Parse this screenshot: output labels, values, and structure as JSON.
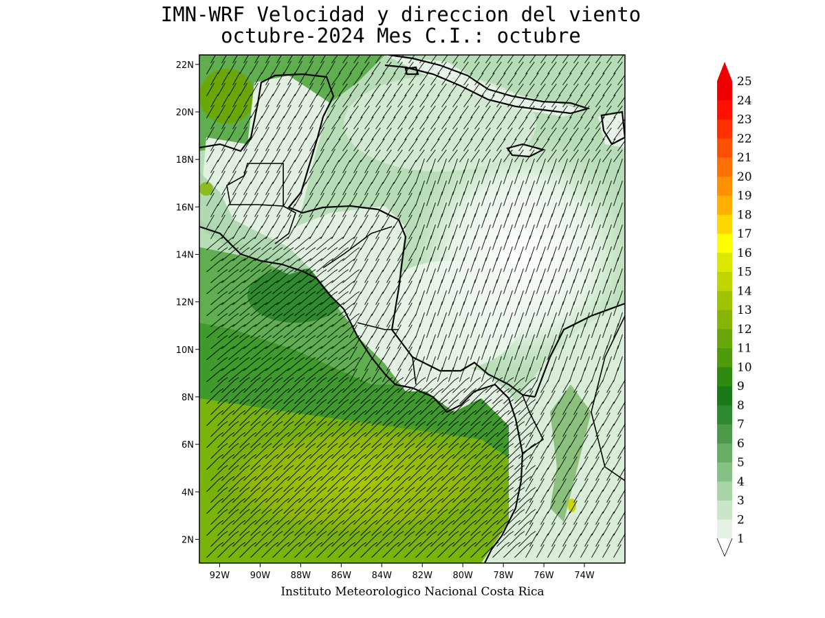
{
  "title": {
    "line1": "IMN-WRF Velocidad y direccion del viento",
    "line2": "octubre-2024 Mes C.I.: octubre"
  },
  "credit": "Instituto Meteorologico Nacional Costa Rica",
  "map": {
    "lon_range": [
      -93.0,
      -72.0
    ],
    "lat_range": [
      1.0,
      22.4
    ],
    "lat_ticks": [
      {
        "value": 2,
        "label": "2N"
      },
      {
        "value": 4,
        "label": "4N"
      },
      {
        "value": 6,
        "label": "6N"
      },
      {
        "value": 8,
        "label": "8N"
      },
      {
        "value": 10,
        "label": "10N"
      },
      {
        "value": 12,
        "label": "12N"
      },
      {
        "value": 14,
        "label": "14N"
      },
      {
        "value": 16,
        "label": "16N"
      },
      {
        "value": 18,
        "label": "18N"
      },
      {
        "value": 20,
        "label": "20N"
      },
      {
        "value": 22,
        "label": "22N"
      }
    ],
    "lon_ticks": [
      {
        "value": -92,
        "label": "92W"
      },
      {
        "value": -90,
        "label": "90W"
      },
      {
        "value": -88,
        "label": "88W"
      },
      {
        "value": -86,
        "label": "86W"
      },
      {
        "value": -84,
        "label": "84W"
      },
      {
        "value": -82,
        "label": "82W"
      },
      {
        "value": -80,
        "label": "80W"
      },
      {
        "value": -78,
        "label": "78W"
      },
      {
        "value": -76,
        "label": "76W"
      },
      {
        "value": -74,
        "label": "74W"
      }
    ],
    "field": "wind speed with wind barbs"
  },
  "colorbar": {
    "levels": [
      "1",
      "2",
      "3",
      "4",
      "5",
      "6",
      "7",
      "8",
      "9",
      "10",
      "11",
      "12",
      "13",
      "14",
      "15",
      "16",
      "17",
      "18",
      "19",
      "20",
      "21",
      "22",
      "23",
      "24",
      "25"
    ],
    "colors": [
      "#ffffff",
      "#e5f2e5",
      "#c9e6c9",
      "#a6d4a6",
      "#85c185",
      "#66ad66",
      "#4a9a4a",
      "#2f8a2f",
      "#1a7a1a",
      "#2e8b10",
      "#4f9a0a",
      "#6aa808",
      "#86b505",
      "#a0c300",
      "#bfd600",
      "#dde800",
      "#ffff00",
      "#ffd800",
      "#ffb000",
      "#ff9000",
      "#ff7000",
      "#ff5000",
      "#ff3000",
      "#ff1000",
      "#ee0000"
    ]
  }
}
